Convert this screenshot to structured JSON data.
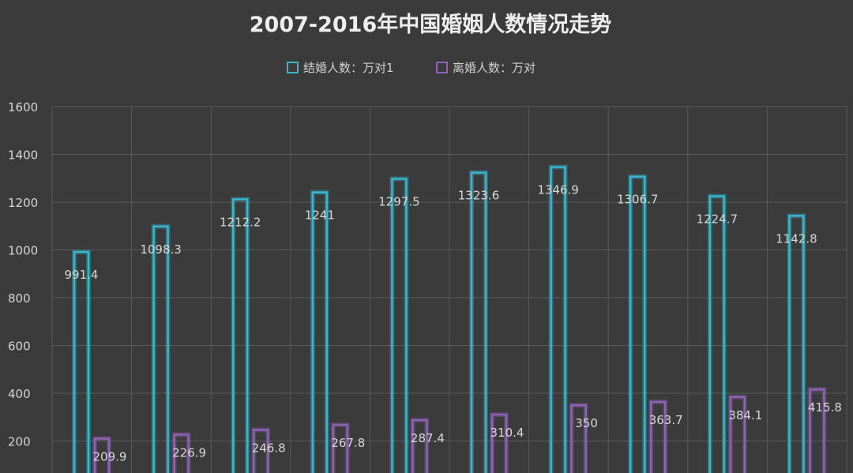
{
  "chart_data": {
    "type": "bar",
    "title": "2007-2016年中国婚姻人数情况走势",
    "xlabel": "",
    "ylabel": "",
    "ylim": [
      0,
      1600
    ],
    "yticks": [
      200,
      400,
      600,
      800,
      1000,
      1200,
      1400,
      1600
    ],
    "grid": true,
    "legend_position": "top-center",
    "series": [
      {
        "name": "结婚人数：万对1",
        "color": "#36b6cf",
        "values": [
          991.4,
          1098.3,
          1212.2,
          1241,
          1297.5,
          1323.6,
          1346.9,
          1306.7,
          1224.7,
          1142.8
        ],
        "labels": [
          "991.4",
          "1098.3",
          "1212.2",
          "1241",
          "1297.5",
          "1323.6",
          "1346.9",
          "1306.7",
          "1224.7",
          "1142.8"
        ]
      },
      {
        "name": "离婚人数：万对",
        "color": "#8e62b5",
        "values": [
          209.9,
          226.9,
          246.8,
          267.8,
          287.4,
          310.4,
          350,
          363.7,
          384.1,
          415.8
        ],
        "labels": [
          "209.9",
          "226.9",
          "246.8",
          "267.8",
          "287.4",
          "310.4",
          "350",
          "363.7",
          "384.1",
          "415.8"
        ]
      }
    ]
  }
}
